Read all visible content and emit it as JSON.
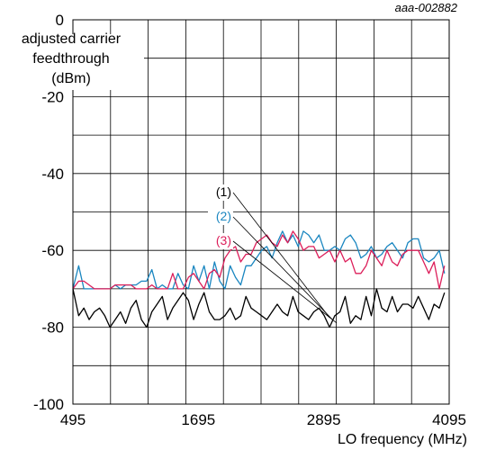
{
  "doc_id": "aaa-002882",
  "chart_data": {
    "type": "line",
    "ylabel_lines": [
      "adjusted carrier",
      "feedthrough",
      "(dBm)"
    ],
    "xlabel": "LO frequency (MHz)",
    "xlim": [
      495,
      4095
    ],
    "ylim": [
      -100,
      0
    ],
    "grid": true,
    "x_ticks": [
      {
        "value": 495,
        "label": "495"
      },
      {
        "value": 1695,
        "label": "1695"
      },
      {
        "value": 2895,
        "label": "2895"
      },
      {
        "value": 4095,
        "label": "4095"
      }
    ],
    "y_ticks": [
      {
        "value": 0,
        "label": "0"
      },
      {
        "value": -20,
        "label": "-20"
      },
      {
        "value": -40,
        "label": "-40"
      },
      {
        "value": -60,
        "label": "-60"
      },
      {
        "value": -80,
        "label": "-80"
      },
      {
        "value": -100,
        "label": "-100"
      }
    ],
    "x": [
      495,
      550,
      600,
      650,
      700,
      750,
      800,
      850,
      900,
      950,
      1000,
      1050,
      1100,
      1150,
      1200,
      1250,
      1300,
      1350,
      1400,
      1450,
      1500,
      1550,
      1600,
      1650,
      1700,
      1750,
      1800,
      1850,
      1900,
      1950,
      2000,
      2050,
      2100,
      2150,
      2200,
      2250,
      2300,
      2350,
      2400,
      2450,
      2500,
      2550,
      2600,
      2650,
      2700,
      2750,
      2800,
      2850,
      2900,
      2950,
      3000,
      3050,
      3100,
      3150,
      3200,
      3250,
      3300,
      3350,
      3400,
      3450,
      3500,
      3550,
      3600,
      3650,
      3700,
      3750,
      3800,
      3850,
      3900,
      3950,
      4000,
      4050
    ],
    "series": [
      {
        "name": "(1)",
        "color": "#000000",
        "values": [
          -70,
          -77,
          -75,
          -78,
          -76,
          -75,
          -77,
          -80,
          -78,
          -76,
          -79,
          -75,
          -73,
          -78,
          -80,
          -76,
          -74,
          -72,
          -78,
          -75,
          -73,
          -71,
          -73,
          -78,
          -74,
          -71,
          -76,
          -78,
          -78,
          -77,
          -75,
          -78,
          -77,
          -72,
          -75,
          -76,
          -77,
          -78,
          -76,
          -74,
          -76,
          -77,
          -72,
          -76,
          -77,
          -78,
          -76,
          -75,
          -77,
          -80,
          -77,
          -76,
          -72,
          -79,
          -77,
          -78,
          -72,
          -77,
          -70,
          -75,
          -76,
          -72,
          -76,
          -74,
          -74,
          -75,
          -72,
          -75,
          -78,
          -74,
          -75,
          -71
        ]
      },
      {
        "name": "(2)",
        "color": "#1a86c0",
        "values": [
          -70,
          -64,
          -70,
          -70,
          -70,
          -70,
          -70,
          -70,
          -69,
          -70,
          -69,
          -69,
          -69,
          -68,
          -68,
          -65,
          -70,
          -69,
          -70,
          -70,
          -66,
          -69,
          -70,
          -64,
          -68,
          -64,
          -70,
          -63,
          -68,
          -70,
          -64,
          -67,
          -69,
          -64,
          -64,
          -62,
          -60,
          -59,
          -62,
          -58,
          -55,
          -58,
          -56,
          -59,
          -55,
          -56,
          -58,
          -56,
          -60,
          -60,
          -59,
          -60,
          -57,
          -56,
          -58,
          -62,
          -61,
          -59,
          -62,
          -61,
          -59,
          -58,
          -60,
          -62,
          -58,
          -57,
          -57,
          -62,
          -63,
          -62,
          -60,
          -66
        ]
      },
      {
        "name": "(3)",
        "color": "#dc1e5a",
        "values": [
          -70,
          -68,
          -68,
          -69,
          -70,
          -70,
          -70,
          -70,
          -69,
          -69,
          -69,
          -69,
          -70,
          -70,
          -70,
          -69,
          -70,
          -70,
          -70,
          -66,
          -70,
          -70,
          -67,
          -66,
          -68,
          -70,
          -66,
          -65,
          -67,
          -62,
          -60,
          -59,
          -63,
          -61,
          -61,
          -58,
          -57,
          -56,
          -58,
          -59,
          -56,
          -58,
          -55,
          -57,
          -60,
          -59,
          -59,
          -62,
          -61,
          -60,
          -63,
          -60,
          -63,
          -62,
          -66,
          -66,
          -64,
          -60,
          -62,
          -64,
          -60,
          -63,
          -64,
          -61,
          -60,
          -60,
          -60,
          -63,
          -66,
          -63,
          -70,
          -64
        ]
      }
    ]
  }
}
